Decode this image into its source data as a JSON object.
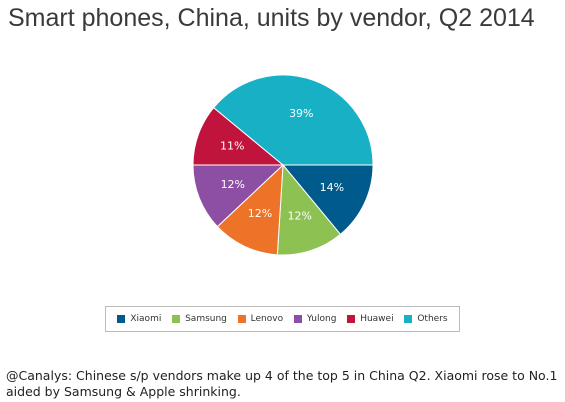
{
  "chart_data": {
    "type": "pie",
    "title": "Smart phones, China, units by vendor, Q2 2014",
    "categories": [
      "Xiaomi",
      "Samsung",
      "Lenovo",
      "Yulong",
      "Huawei",
      "Others"
    ],
    "values": [
      14,
      12,
      12,
      12,
      11,
      39
    ],
    "value_labels": [
      "14%",
      "12%",
      "12%",
      "12%",
      "11%",
      "39%"
    ],
    "colors": [
      "#005a8c",
      "#8dc152",
      "#ed7328",
      "#8d4fa3",
      "#c0143c",
      "#17b0c4"
    ],
    "caption": "@Canalys: Chinese s/p vendors make up 4 of the top 5 in China Q2. Xiaomi rose to No.1 aided by Samsung & Apple shrinking."
  }
}
